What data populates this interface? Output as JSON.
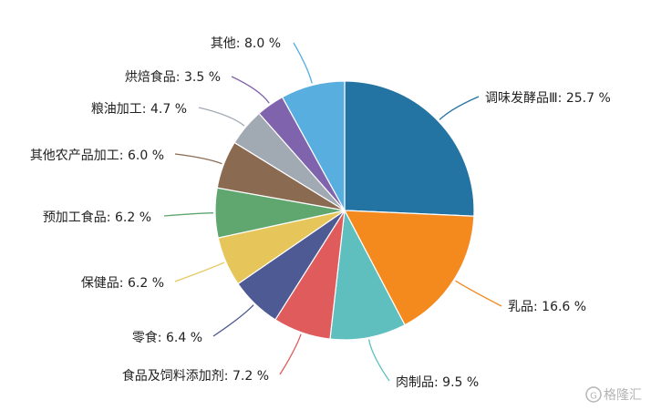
{
  "chart_data": {
    "type": "pie",
    "title": "",
    "slices": [
      {
        "label": "调味发酵品Ⅲ",
        "value": 25.7,
        "display": "调味发酵品Ⅲ: 25.7 %",
        "color": "#2474a3"
      },
      {
        "label": "乳品",
        "value": 16.6,
        "display": "乳品: 16.6 %",
        "color": "#f4891e"
      },
      {
        "label": "肉制品",
        "value": 9.5,
        "display": "肉制品: 9.5 %",
        "color": "#5fbfbf"
      },
      {
        "label": "食品及饲料添加剂",
        "value": 7.2,
        "display": "食品及饲料添加剂: 7.2 %",
        "color": "#e05c5c"
      },
      {
        "label": "零食",
        "value": 6.4,
        "display": "零食: 6.4 %",
        "color": "#4d5a93"
      },
      {
        "label": "保健品",
        "value": 6.2,
        "display": "保健品: 6.2 %",
        "color": "#e6c65a"
      },
      {
        "label": "预加工食品",
        "value": 6.2,
        "display": "预加工食品: 6.2 %",
        "color": "#5fa66f"
      },
      {
        "label": "其他农产品加工",
        "value": 6.0,
        "display": "其他农产品加工: 6.0 %",
        "color": "#8b6a52"
      },
      {
        "label": "粮油加工",
        "value": 4.7,
        "display": "粮油加工: 4.7 %",
        "color": "#a1a9b3"
      },
      {
        "label": "烘焙食品",
        "value": 3.5,
        "display": "烘焙食品: 3.5 %",
        "color": "#8063ad"
      },
      {
        "label": "其他",
        "value": 8.0,
        "display": "其他: 8.0 %",
        "color": "#58aedf"
      }
    ],
    "legend": "none"
  },
  "watermark": {
    "text": "格隆汇",
    "icon": "g-logo-icon"
  }
}
